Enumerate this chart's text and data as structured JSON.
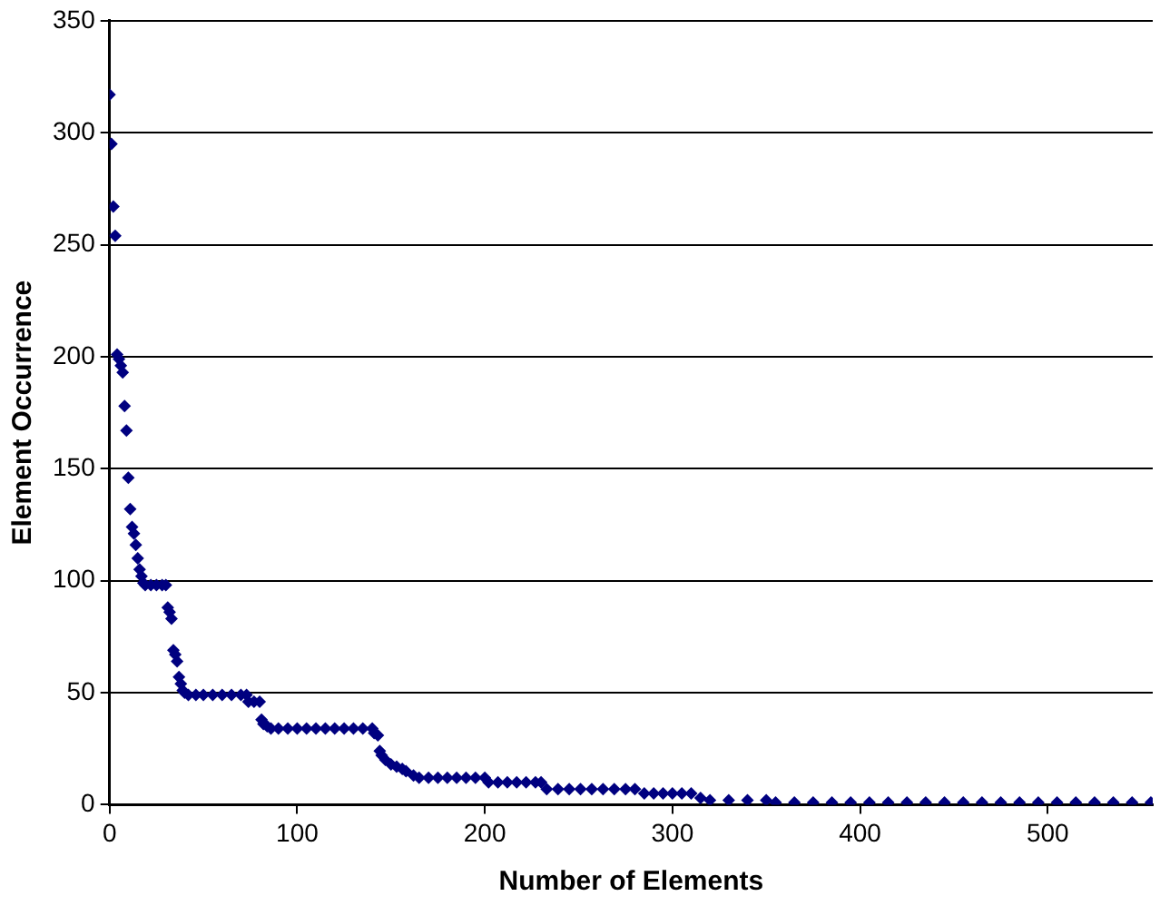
{
  "chart_data": {
    "type": "scatter",
    "xlabel": "Number of Elements",
    "ylabel": "Element Occurrence",
    "xlim": [
      0,
      556
    ],
    "xticks": [
      0,
      100,
      200,
      300,
      400,
      500
    ],
    "ylim": [
      0,
      350
    ],
    "yticks": [
      0,
      50,
      100,
      150,
      200,
      250,
      300,
      350
    ],
    "grid": "y",
    "marker": "diamond",
    "series": [
      {
        "color": "#000080",
        "x": [
          0,
          1,
          2,
          3,
          4,
          5,
          6,
          7,
          8,
          9,
          10,
          11,
          12,
          13,
          14,
          15,
          16,
          17,
          18,
          19,
          22,
          25,
          28,
          30,
          31,
          32,
          33,
          34,
          35,
          36,
          37,
          38,
          39,
          40,
          42,
          46,
          50,
          55,
          60,
          65,
          70,
          73,
          74,
          77,
          80,
          81,
          82,
          84,
          86,
          90,
          95,
          100,
          105,
          110,
          115,
          120,
          125,
          130,
          135,
          140,
          141,
          143,
          144,
          145,
          147,
          150,
          153,
          156,
          158,
          162,
          165,
          170,
          175,
          180,
          185,
          190,
          195,
          200,
          202,
          207,
          212,
          217,
          222,
          227,
          230,
          233,
          239,
          245,
          251,
          257,
          263,
          269,
          275,
          280,
          285,
          290,
          295,
          300,
          305,
          310,
          315,
          320,
          330,
          340,
          350,
          355,
          365,
          375,
          385,
          395,
          405,
          415,
          425,
          435,
          445,
          455,
          465,
          475,
          485,
          495,
          505,
          515,
          525,
          535,
          545,
          555
        ],
        "values": [
          317,
          295,
          267,
          254,
          201,
          199,
          196,
          193,
          178,
          167,
          146,
          132,
          124,
          121,
          116,
          110,
          105,
          102,
          99,
          98,
          98,
          98,
          98,
          98,
          88,
          86,
          83,
          69,
          67,
          64,
          57,
          54,
          51,
          50,
          49,
          49,
          49,
          49,
          49,
          49,
          49,
          49,
          46,
          46,
          46,
          38,
          36,
          35,
          34,
          34,
          34,
          34,
          34,
          34,
          34,
          34,
          34,
          34,
          34,
          34,
          32,
          31,
          24,
          22,
          20,
          18,
          17,
          16,
          15,
          13,
          12,
          12,
          12,
          12,
          12,
          12,
          12,
          12,
          10,
          10,
          10,
          10,
          10,
          10,
          10,
          7,
          7,
          7,
          7,
          7,
          7,
          7,
          7,
          7,
          5,
          5,
          5,
          5,
          5,
          5,
          3,
          2,
          2,
          2,
          2,
          1,
          1,
          1,
          1,
          1,
          1,
          1,
          1,
          1,
          1,
          1,
          1,
          1,
          1,
          1,
          1,
          1,
          1,
          1,
          1,
          1
        ]
      }
    ]
  }
}
